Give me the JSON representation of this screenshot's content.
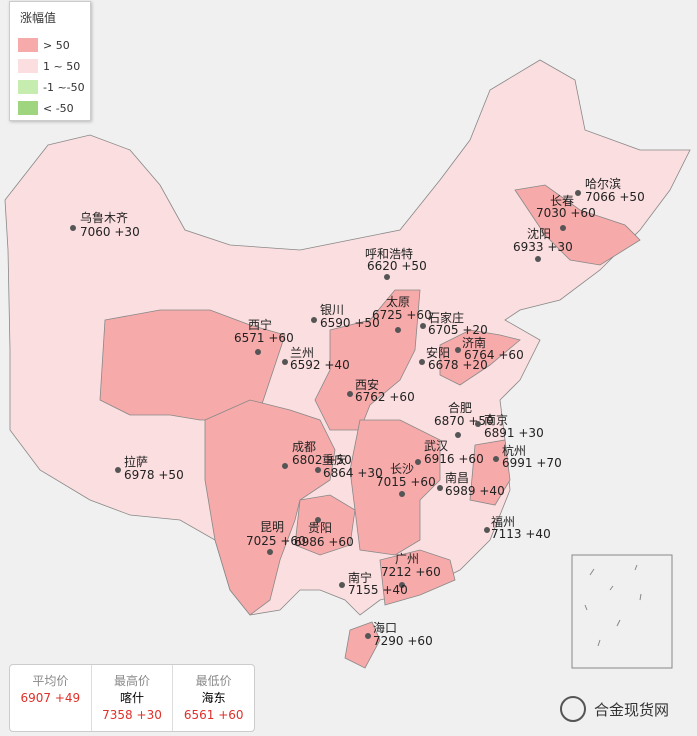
{
  "legend": {
    "title": "涨幅值",
    "items": [
      {
        "label": "> 50",
        "color": "#f6aaaa"
      },
      {
        "label": "1 ~ 50",
        "color": "#fbdedf"
      },
      {
        "label": "-1 ~-50",
        "color": "#c6ecb0"
      },
      {
        "label": "< -50",
        "color": "#9fd57f"
      }
    ]
  },
  "cities": [
    {
      "name": "乌鲁木齐",
      "price": "7060",
      "change": "+30"
    },
    {
      "name": "呼和浩特",
      "price": "6620",
      "change": "+50"
    },
    {
      "name": "哈尔滨",
      "price": "7066",
      "change": "+50"
    },
    {
      "name": "长春",
      "price": "7030",
      "change": "+60"
    },
    {
      "name": "沈阳",
      "price": "6933",
      "change": "+30"
    },
    {
      "name": "银川",
      "price": "6590",
      "change": "+50"
    },
    {
      "name": "太原",
      "price": "6725",
      "change": "+60"
    },
    {
      "name": "石家庄",
      "price": "6705",
      "change": "+20"
    },
    {
      "name": "西宁",
      "price": "6571",
      "change": "+60"
    },
    {
      "name": "兰州",
      "price": "6592",
      "change": "+40"
    },
    {
      "name": "济南",
      "price": "6764",
      "change": "+60"
    },
    {
      "name": "安阳",
      "price": "6678",
      "change": "+20"
    },
    {
      "name": "西安",
      "price": "6762",
      "change": "+60"
    },
    {
      "name": "合肥",
      "price": "6870",
      "change": "+50"
    },
    {
      "name": "南京",
      "price": "6891",
      "change": "+30"
    },
    {
      "name": "成都",
      "price": "6802",
      "change": "+50"
    },
    {
      "name": "重庆",
      "price": "6864",
      "change": "+30"
    },
    {
      "name": "武汉",
      "price": "6916",
      "change": "+60"
    },
    {
      "name": "杭州",
      "price": "6991",
      "change": "+70"
    },
    {
      "name": "长沙",
      "price": "7015",
      "change": "+60"
    },
    {
      "name": "南昌",
      "price": "6989",
      "change": "+40"
    },
    {
      "name": "昆明",
      "price": "7025",
      "change": "+60"
    },
    {
      "name": "贵阳",
      "price": "6986",
      "change": "+60"
    },
    {
      "name": "福州",
      "price": "7113",
      "change": "+40"
    },
    {
      "name": "广州",
      "price": "7212",
      "change": "+60"
    },
    {
      "name": "南宁",
      "price": "7155",
      "change": "+40"
    },
    {
      "name": "海口",
      "price": "7290",
      "change": "+60"
    },
    {
      "name": "拉萨",
      "price": "6978",
      "change": "+50"
    }
  ],
  "summary": {
    "average": {
      "label": "平均价",
      "price": "6907",
      "change": "+49"
    },
    "highest": {
      "label": "最高价",
      "city": "喀什",
      "price": "7358",
      "change": "+30"
    },
    "lowest": {
      "label": "最低价",
      "city": "海东",
      "price": "6561",
      "change": "+60"
    }
  },
  "watermark": "合金现货网"
}
